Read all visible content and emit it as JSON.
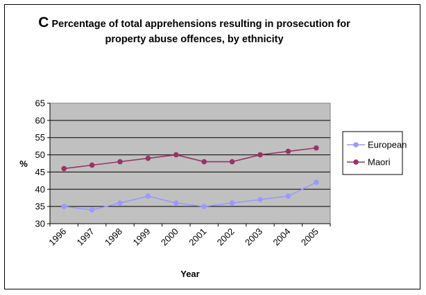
{
  "chart_data": {
    "type": "line",
    "title_letter": "C",
    "title": "Percentage of total apprehensions resulting in prosecution for property abuse offences, by ethnicity",
    "xlabel": "Year",
    "ylabel": "%",
    "categories": [
      "1996",
      "1997",
      "1998",
      "1999",
      "2000",
      "2001",
      "2002",
      "2003",
      "2004",
      "2005"
    ],
    "ylim": [
      30,
      65
    ],
    "yticks": [
      "30",
      "35",
      "40",
      "45",
      "50",
      "55",
      "60",
      "65"
    ],
    "grid": true,
    "legend_position": "right",
    "series": [
      {
        "name": "European",
        "color": "#9999FF",
        "values": [
          35,
          34,
          36,
          38,
          36,
          35,
          36,
          37,
          38,
          42
        ]
      },
      {
        "name": "Maori",
        "color": "#993366",
        "values": [
          46,
          47,
          48,
          49,
          50,
          48,
          48,
          50,
          51,
          52
        ]
      }
    ],
    "plot_background": "#C0C0C0"
  }
}
